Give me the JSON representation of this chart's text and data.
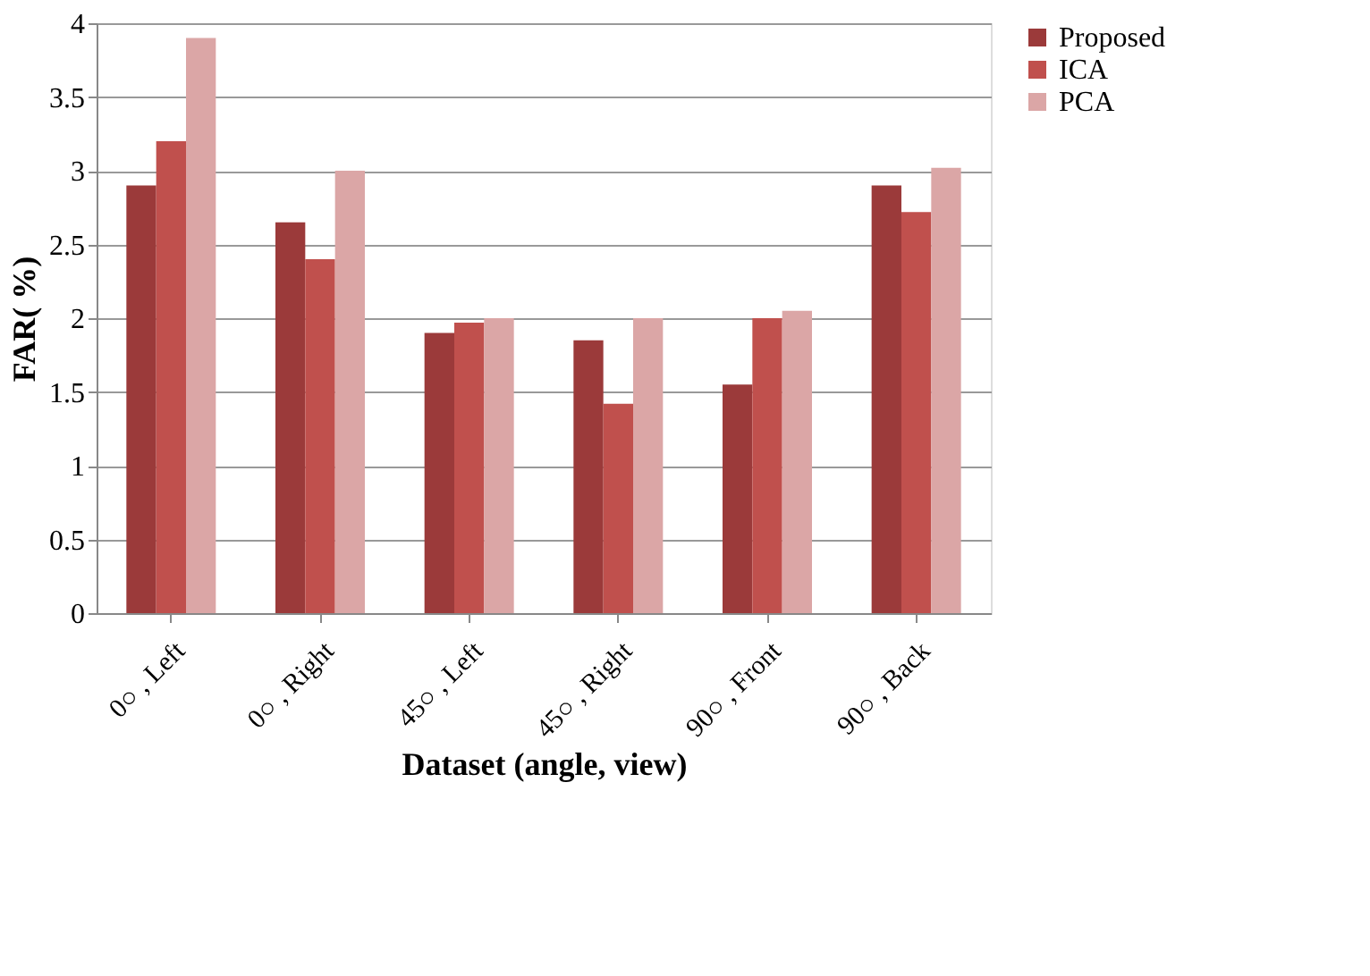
{
  "chart_data": {
    "type": "bar",
    "xlabel": "Dataset (angle, view)",
    "ylabel": "FAR( %)",
    "categories": [
      "0○ , Left",
      "0○ , Right",
      "45○ , Left",
      "45○ , Right",
      "90○ , Front",
      "90○ , Back"
    ],
    "series": [
      {
        "name": "Proposed",
        "color": "#9b3a3a",
        "values": [
          2.9,
          2.65,
          1.9,
          1.85,
          1.55,
          2.9
        ]
      },
      {
        "name": "ICA",
        "color": "#c0504d",
        "values": [
          3.2,
          2.4,
          1.97,
          1.42,
          2.0,
          2.72
        ]
      },
      {
        "name": "PCA",
        "color": "#dba6a6",
        "values": [
          3.9,
          3.0,
          2.0,
          2.0,
          2.05,
          3.02
        ]
      }
    ],
    "ylim": [
      0,
      4
    ],
    "yticks": [
      0,
      0.5,
      1,
      1.5,
      2,
      2.5,
      3,
      3.5,
      4
    ],
    "grid": "y",
    "legend": "right"
  }
}
